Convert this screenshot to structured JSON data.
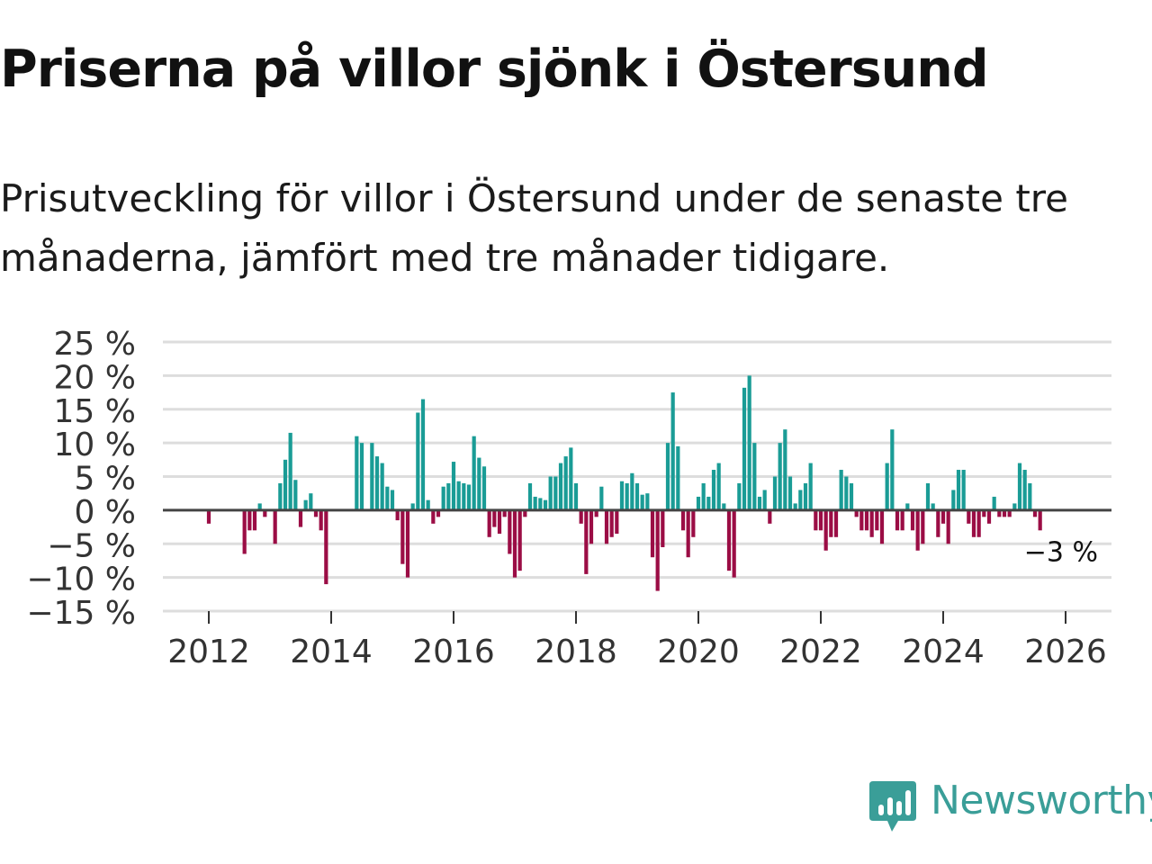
{
  "title": "Priserna på villor sjönk i Östersund",
  "subtitle": "Prisutveckling för villor i Östersund under de senaste tre månaderna, jämfört med tre månader tidigare.",
  "logo": {
    "name": "Newsworthy"
  },
  "colors": {
    "positive": "#1a9c96",
    "negative": "#9b0d45",
    "grid": "#dddddd",
    "zero_line": "#444444"
  },
  "chart_data": {
    "type": "bar",
    "title": "Priserna på villor sjönk i Östersund",
    "xlabel": "",
    "ylabel": "",
    "ylim": [
      -15,
      25
    ],
    "yticks": [
      {
        "value": 25,
        "label": "25 %"
      },
      {
        "value": 20,
        "label": "20 %"
      },
      {
        "value": 15,
        "label": "15 %"
      },
      {
        "value": 10,
        "label": "10 %"
      },
      {
        "value": 5,
        "label": "5 %"
      },
      {
        "value": 0,
        "label": "0 %"
      },
      {
        "value": -5,
        "label": "−5 %"
      },
      {
        "value": -10,
        "label": "−10 %"
      },
      {
        "value": -15,
        "label": "−15 %"
      }
    ],
    "xticks": [
      {
        "year": 2012,
        "label": "2012"
      },
      {
        "year": 2014,
        "label": "2014"
      },
      {
        "year": 2016,
        "label": "2016"
      },
      {
        "year": 2018,
        "label": "2018"
      },
      {
        "year": 2020,
        "label": "2020"
      },
      {
        "year": 2022,
        "label": "2022"
      },
      {
        "year": 2024,
        "label": "2024"
      },
      {
        "year": 2026,
        "label": "2026"
      }
    ],
    "start": {
      "year": 2012,
      "month": 1
    },
    "values": [
      -2,
      0,
      0,
      0,
      0,
      0,
      0,
      -6.5,
      -3,
      -3,
      1,
      -1,
      0,
      -5,
      4,
      7.5,
      11.5,
      4.5,
      -2.5,
      1.5,
      2.5,
      -1,
      -3,
      -11,
      0,
      0,
      0,
      0,
      0,
      11,
      10,
      0,
      10,
      8,
      7,
      3.5,
      3,
      -1.5,
      -8,
      -10,
      1,
      14.5,
      16.5,
      1.5,
      -2,
      -1,
      3.5,
      4,
      7.2,
      4.3,
      4,
      3.8,
      11,
      7.8,
      6.5,
      -4,
      -2.5,
      -3.5,
      -1,
      -6.5,
      -10,
      -9,
      -1,
      4,
      2,
      1.8,
      1.5,
      5,
      5,
      7,
      8,
      9.3,
      4,
      -2,
      -9.5,
      -5,
      -1,
      3.5,
      -5,
      -4,
      -3.5,
      4.3,
      4,
      5.5,
      4,
      2.3,
      2.5,
      -7,
      -12,
      -5.5,
      10,
      17.5,
      9.5,
      -3,
      -7,
      -4,
      2,
      4,
      2,
      6,
      7,
      1,
      -9,
      -10,
      4,
      18.2,
      20,
      10,
      2,
      3,
      -2,
      5,
      10,
      12,
      5,
      1,
      3,
      4,
      7,
      -3,
      -3,
      -6,
      -4,
      -4,
      6,
      5,
      4,
      -1,
      -3,
      -3,
      -4,
      -3,
      -5,
      7,
      12,
      -3,
      -3,
      1,
      -3,
      -6,
      -5,
      4,
      1,
      -4,
      -2,
      -5,
      3,
      6,
      6,
      -2,
      -4,
      -4,
      -1,
      -2,
      2,
      -1,
      -1,
      -1,
      1,
      7,
      6,
      4,
      -1,
      -3
    ],
    "annotation": {
      "label": "−3 %",
      "value": -3,
      "year": 2026,
      "month": 3
    }
  }
}
